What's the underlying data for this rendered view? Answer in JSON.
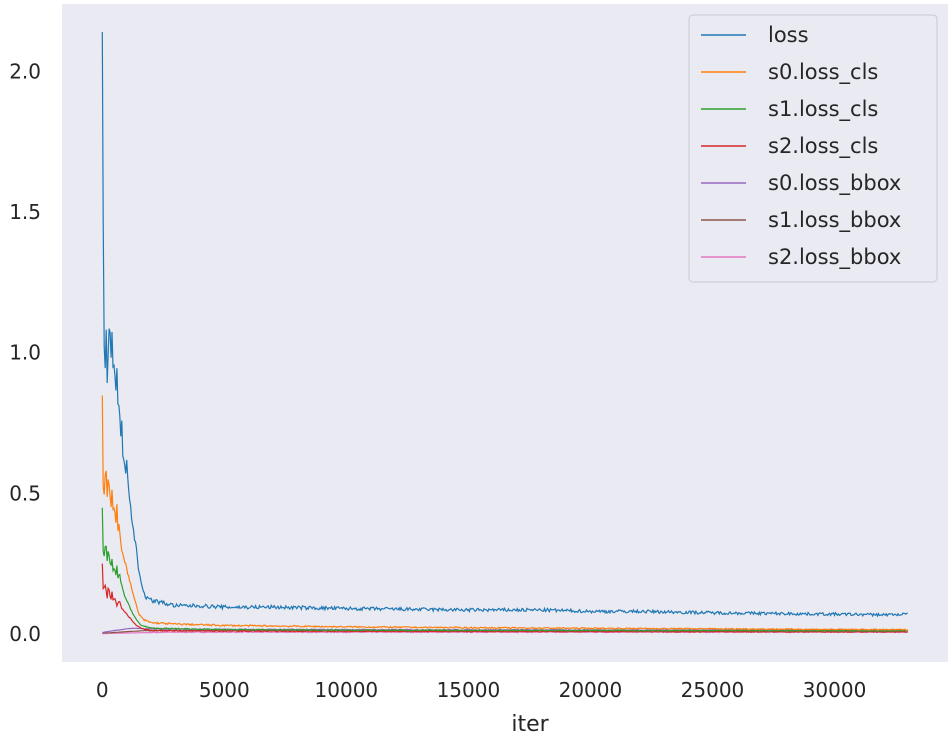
{
  "chart_data": {
    "type": "line",
    "title": "",
    "xlabel": "iter",
    "ylabel": "",
    "xlim": [
      -1650,
      34650
    ],
    "ylim": [
      -0.1,
      2.24
    ],
    "xticks": [
      0,
      5000,
      10000,
      15000,
      20000,
      25000,
      30000
    ],
    "xtick_labels": [
      "0",
      "5000",
      "10000",
      "15000",
      "20000",
      "25000",
      "30000"
    ],
    "yticks": [
      0.0,
      0.5,
      1.0,
      1.5,
      2.0
    ],
    "ytick_labels": [
      "0.0",
      "0.5",
      "1.0",
      "1.5",
      "2.0"
    ],
    "grid": false,
    "background": "#eaeaf2",
    "legend_position": "top-right",
    "x_range": [
      0,
      33000
    ],
    "series": [
      {
        "name": "loss",
        "color": "#1f77b4",
        "points": [
          [
            0,
            2.14
          ],
          [
            50,
            1.3
          ],
          [
            100,
            0.85
          ],
          [
            150,
            1.1
          ],
          [
            200,
            0.9
          ],
          [
            250,
            1.05
          ],
          [
            300,
            1.15
          ],
          [
            350,
            0.95
          ],
          [
            400,
            1.05
          ],
          [
            450,
            0.9
          ],
          [
            500,
            1.0
          ],
          [
            550,
            0.85
          ],
          [
            600,
            0.92
          ],
          [
            650,
            0.8
          ],
          [
            700,
            0.85
          ],
          [
            750,
            0.7
          ],
          [
            800,
            0.78
          ],
          [
            850,
            0.6
          ],
          [
            900,
            0.65
          ],
          [
            950,
            0.55
          ],
          [
            1000,
            0.62
          ],
          [
            1100,
            0.5
          ],
          [
            1200,
            0.42
          ],
          [
            1300,
            0.35
          ],
          [
            1400,
            0.3
          ],
          [
            1500,
            0.22
          ],
          [
            1600,
            0.18
          ],
          [
            1700,
            0.15
          ],
          [
            1800,
            0.13
          ],
          [
            2000,
            0.12
          ],
          [
            2500,
            0.11
          ],
          [
            3000,
            0.1
          ],
          [
            4000,
            0.1
          ],
          [
            5000,
            0.095
          ],
          [
            7000,
            0.095
          ],
          [
            10000,
            0.09
          ],
          [
            12000,
            0.088
          ],
          [
            15000,
            0.085
          ],
          [
            18000,
            0.085
          ],
          [
            20000,
            0.08
          ],
          [
            22000,
            0.08
          ],
          [
            25000,
            0.075
          ],
          [
            28000,
            0.072
          ],
          [
            30000,
            0.07
          ],
          [
            32000,
            0.068
          ],
          [
            33000,
            0.07
          ]
        ]
      },
      {
        "name": "s0.loss_cls",
        "color": "#ff7f0e",
        "points": [
          [
            0,
            0.83
          ],
          [
            50,
            0.45
          ],
          [
            100,
            0.55
          ],
          [
            150,
            0.62
          ],
          [
            200,
            0.48
          ],
          [
            250,
            0.58
          ],
          [
            300,
            0.52
          ],
          [
            350,
            0.45
          ],
          [
            400,
            0.5
          ],
          [
            450,
            0.42
          ],
          [
            500,
            0.48
          ],
          [
            550,
            0.38
          ],
          [
            600,
            0.45
          ],
          [
            650,
            0.35
          ],
          [
            700,
            0.4
          ],
          [
            750,
            0.32
          ],
          [
            800,
            0.3
          ],
          [
            900,
            0.27
          ],
          [
            1000,
            0.23
          ],
          [
            1100,
            0.2
          ],
          [
            1200,
            0.16
          ],
          [
            1300,
            0.13
          ],
          [
            1400,
            0.1
          ],
          [
            1500,
            0.07
          ],
          [
            1700,
            0.05
          ],
          [
            2000,
            0.04
          ],
          [
            3000,
            0.035
          ],
          [
            5000,
            0.03
          ],
          [
            10000,
            0.025
          ],
          [
            15000,
            0.022
          ],
          [
            20000,
            0.02
          ],
          [
            25000,
            0.018
          ],
          [
            30000,
            0.016
          ],
          [
            33000,
            0.015
          ]
        ]
      },
      {
        "name": "s1.loss_cls",
        "color": "#2ca02c",
        "points": [
          [
            0,
            0.46
          ],
          [
            50,
            0.25
          ],
          [
            100,
            0.3
          ],
          [
            150,
            0.32
          ],
          [
            200,
            0.26
          ],
          [
            250,
            0.3
          ],
          [
            300,
            0.27
          ],
          [
            350,
            0.24
          ],
          [
            400,
            0.27
          ],
          [
            450,
            0.22
          ],
          [
            500,
            0.25
          ],
          [
            550,
            0.2
          ],
          [
            600,
            0.24
          ],
          [
            650,
            0.19
          ],
          [
            700,
            0.22
          ],
          [
            800,
            0.17
          ],
          [
            900,
            0.14
          ],
          [
            1000,
            0.12
          ],
          [
            1200,
            0.08
          ],
          [
            1400,
            0.05
          ],
          [
            1600,
            0.03
          ],
          [
            2000,
            0.02
          ],
          [
            5000,
            0.015
          ],
          [
            10000,
            0.013
          ],
          [
            20000,
            0.012
          ],
          [
            33000,
            0.011
          ]
        ]
      },
      {
        "name": "s2.loss_cls",
        "color": "#d62728",
        "points": [
          [
            0,
            0.25
          ],
          [
            50,
            0.14
          ],
          [
            100,
            0.18
          ],
          [
            150,
            0.16
          ],
          [
            200,
            0.13
          ],
          [
            250,
            0.17
          ],
          [
            300,
            0.15
          ],
          [
            350,
            0.12
          ],
          [
            400,
            0.15
          ],
          [
            450,
            0.11
          ],
          [
            500,
            0.13
          ],
          [
            600,
            0.1
          ],
          [
            700,
            0.12
          ],
          [
            800,
            0.09
          ],
          [
            900,
            0.08
          ],
          [
            1000,
            0.07
          ],
          [
            1200,
            0.05
          ],
          [
            1400,
            0.03
          ],
          [
            1600,
            0.02
          ],
          [
            2000,
            0.012
          ],
          [
            5000,
            0.01
          ],
          [
            10000,
            0.009
          ],
          [
            20000,
            0.008
          ],
          [
            33000,
            0.007
          ]
        ]
      },
      {
        "name": "s0.loss_bbox",
        "color": "#9467bd",
        "points": [
          [
            0,
            0.005
          ],
          [
            200,
            0.008
          ],
          [
            500,
            0.012
          ],
          [
            800,
            0.015
          ],
          [
            1000,
            0.018
          ],
          [
            1300,
            0.02
          ],
          [
            1600,
            0.019
          ],
          [
            2000,
            0.018
          ],
          [
            3000,
            0.017
          ],
          [
            5000,
            0.016
          ],
          [
            10000,
            0.015
          ],
          [
            20000,
            0.014
          ],
          [
            33000,
            0.013
          ]
        ]
      },
      {
        "name": "s1.loss_bbox",
        "color": "#8c564b",
        "points": [
          [
            0,
            0.003
          ],
          [
            300,
            0.004
          ],
          [
            700,
            0.006
          ],
          [
            1000,
            0.008
          ],
          [
            1400,
            0.01
          ],
          [
            2000,
            0.012
          ],
          [
            3000,
            0.012
          ],
          [
            5000,
            0.012
          ],
          [
            10000,
            0.012
          ],
          [
            20000,
            0.011
          ],
          [
            33000,
            0.011
          ]
        ]
      },
      {
        "name": "s2.loss_bbox",
        "color": "#e377c2",
        "points": [
          [
            0,
            0.001
          ],
          [
            500,
            0.002
          ],
          [
            1000,
            0.003
          ],
          [
            1500,
            0.004
          ],
          [
            2000,
            0.005
          ],
          [
            3000,
            0.006
          ],
          [
            5000,
            0.006
          ],
          [
            10000,
            0.006
          ],
          [
            20000,
            0.006
          ],
          [
            33000,
            0.006
          ]
        ]
      }
    ]
  }
}
